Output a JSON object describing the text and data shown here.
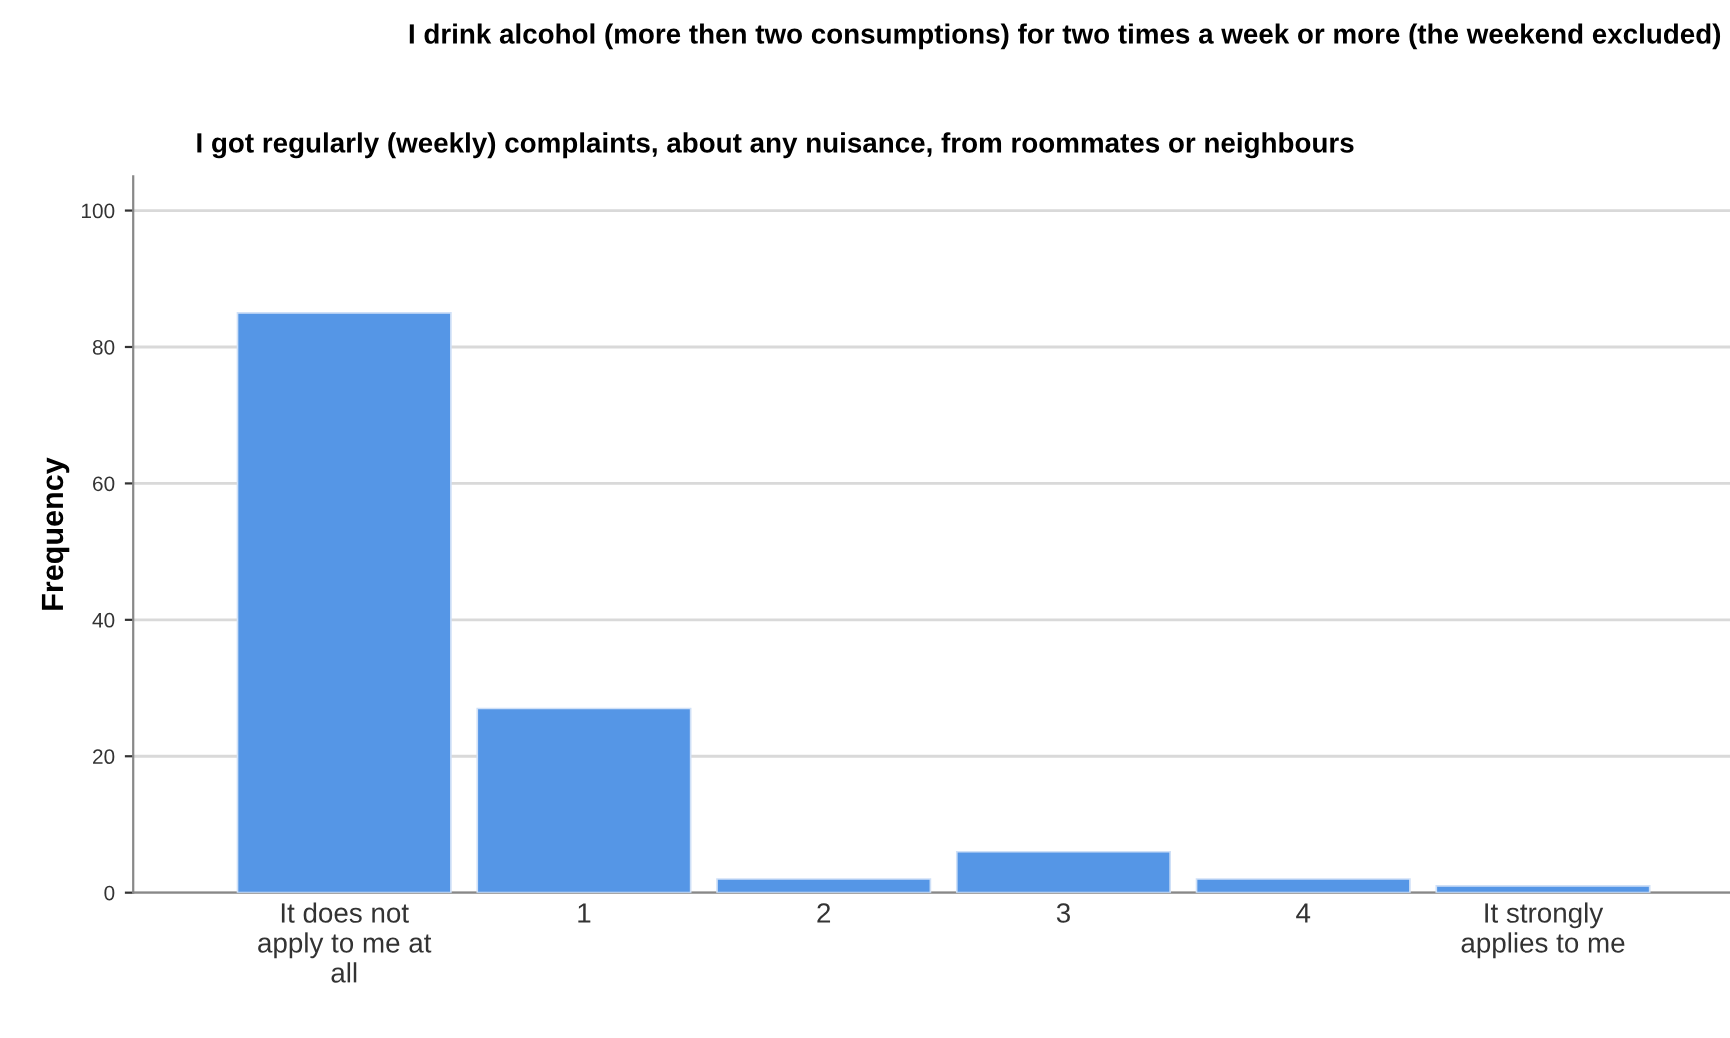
{
  "chart_data": {
    "type": "bar",
    "title": "I drink alcohol (more then two consumptions) for two times a week or more (the weekend excluded)",
    "subtitle": "I got regularly (weekly) complaints, about any nuisance, from roommates or neighbours",
    "ylabel": "Frequency",
    "categories": [
      "It does not\napply to me at\nall",
      "1",
      "2",
      "3",
      "4",
      "It strongly\napplies to me"
    ],
    "values": [
      85,
      27,
      2,
      6,
      2,
      1
    ],
    "color": "#5596e6",
    "ylim": [
      0,
      105
    ],
    "yticks": [
      0,
      20,
      40,
      60,
      80,
      100
    ],
    "grid": "y",
    "legend": false
  }
}
